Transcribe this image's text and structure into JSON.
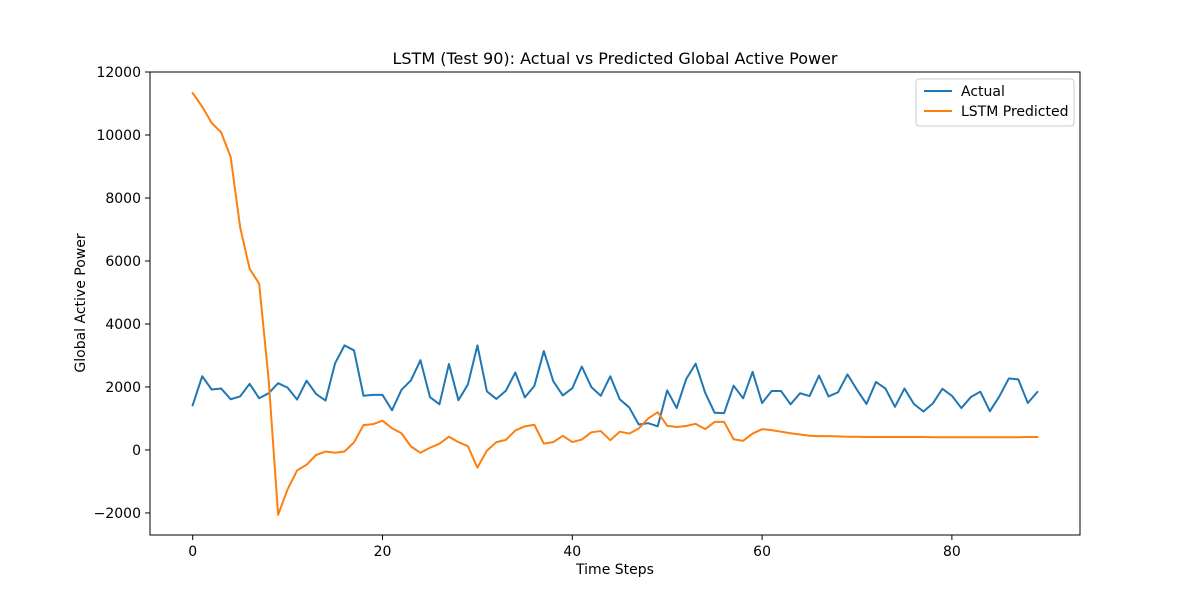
{
  "chart_data": {
    "type": "line",
    "title": "LSTM (Test 90): Actual vs Predicted Global Active Power",
    "xlabel": "Time Steps",
    "ylabel": "Global Active Power",
    "xlim": [
      -4.5,
      93.5
    ],
    "ylim": [
      -2700,
      12000
    ],
    "xticks": [
      0,
      20,
      40,
      60,
      80
    ],
    "yticks": [
      -2000,
      0,
      2000,
      4000,
      6000,
      8000,
      10000,
      12000
    ],
    "ytick_labels": [
      "−2000",
      "0",
      "2000",
      "4000",
      "6000",
      "8000",
      "10000",
      "12000"
    ],
    "grid": false,
    "legend_position": "top-right",
    "series": [
      {
        "name": "Actual",
        "color": "#1f77b4",
        "values": [
          1420,
          2340,
          1920,
          1950,
          1610,
          1700,
          2100,
          1640,
          1800,
          2120,
          1980,
          1600,
          2200,
          1780,
          1570,
          2750,
          3320,
          3160,
          1720,
          1750,
          1750,
          1260,
          1910,
          2210,
          2850,
          1680,
          1450,
          2730,
          1580,
          2080,
          3320,
          1860,
          1620,
          1880,
          2460,
          1670,
          2030,
          3140,
          2180,
          1730,
          1960,
          2650,
          2000,
          1720,
          2340,
          1610,
          1350,
          810,
          850,
          750,
          1890,
          1330,
          2250,
          2740,
          1820,
          1180,
          1170,
          2040,
          1640,
          2480,
          1490,
          1870,
          1870,
          1450,
          1800,
          1710,
          2360,
          1700,
          1830,
          2400,
          1910,
          1460,
          2160,
          1950,
          1370,
          1950,
          1460,
          1220,
          1480,
          1940,
          1720,
          1330,
          1680,
          1850,
          1230,
          1700,
          2270,
          2240,
          1490,
          1840
        ]
      },
      {
        "name": "LSTM Predicted",
        "color": "#ff7f0e",
        "values": [
          11330,
          10900,
          10380,
          10080,
          9300,
          7070,
          5750,
          5280,
          2240,
          -2060,
          -1250,
          -650,
          -470,
          -160,
          -50,
          -90,
          -50,
          240,
          790,
          820,
          930,
          690,
          530,
          110,
          -90,
          70,
          200,
          420,
          250,
          120,
          -560,
          -20,
          250,
          320,
          620,
          750,
          800,
          200,
          250,
          450,
          250,
          330,
          560,
          600,
          310,
          580,
          520,
          680,
          1000,
          1200,
          770,
          730,
          760,
          830,
          660,
          890,
          890,
          340,
          290,
          520,
          660,
          630,
          580,
          530,
          490,
          450,
          440,
          440,
          430,
          420,
          420,
          410,
          410,
          410,
          410,
          410,
          410,
          410,
          405,
          405,
          405,
          405,
          405,
          405,
          405,
          405,
          405,
          405,
          410,
          410
        ]
      }
    ]
  }
}
